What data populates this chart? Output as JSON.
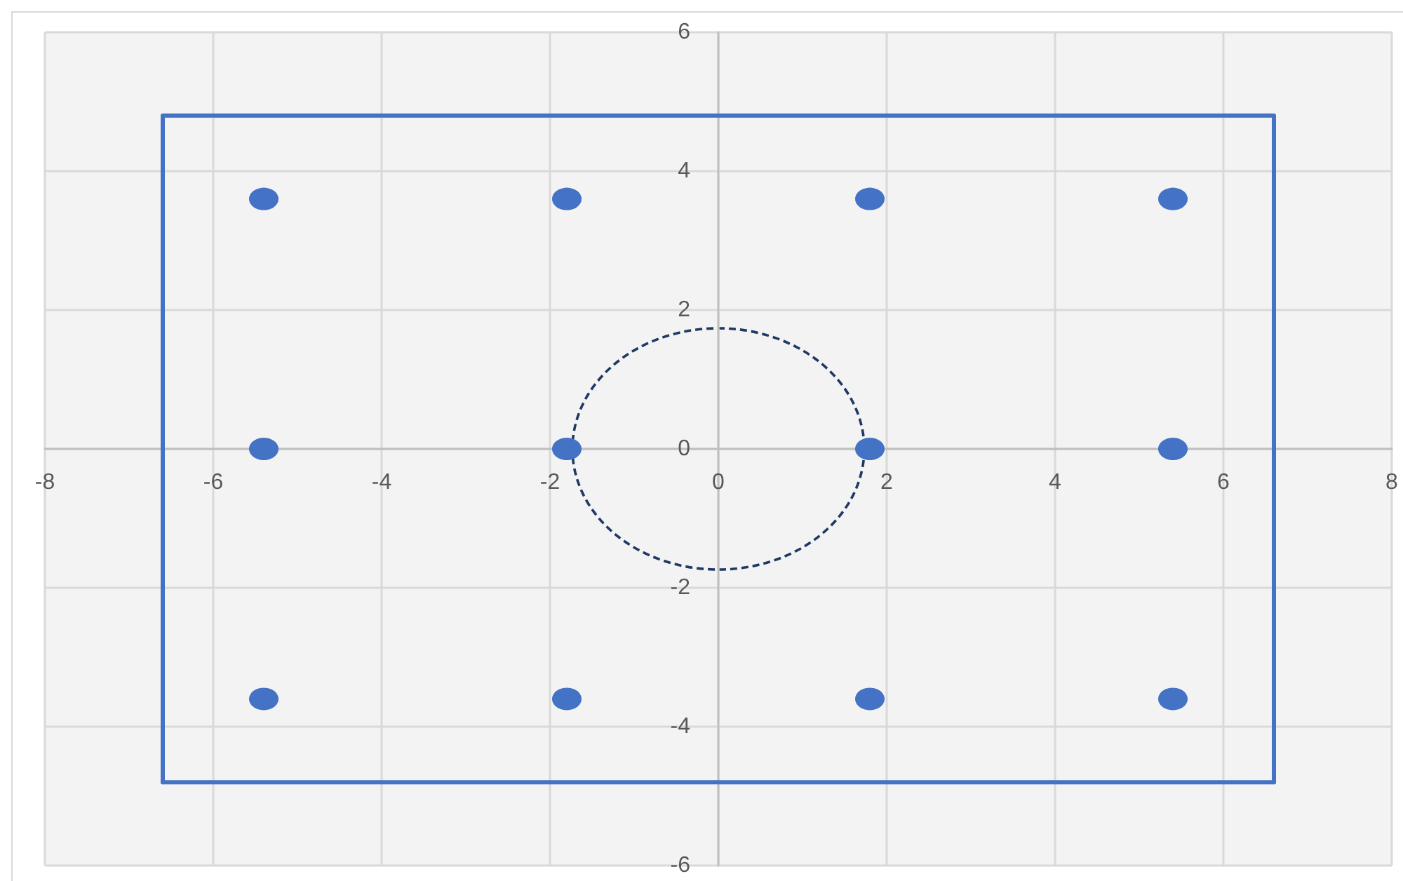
{
  "chart_data": {
    "type": "scatter",
    "xlim": [
      -8,
      8
    ],
    "xticks": [
      -8,
      -6,
      -4,
      -2,
      0,
      2,
      4,
      6,
      8
    ],
    "ylim": [
      -6,
      6
    ],
    "yticks": [
      -6,
      -4,
      -2,
      0,
      2,
      4,
      6
    ],
    "grid": true,
    "marker": "circle",
    "series": [
      {
        "color": "#4472c4",
        "x": [
          -5.4,
          -1.8,
          1.8,
          5.4,
          -5.4,
          -1.8,
          1.8,
          5.4,
          -5.4,
          -1.8,
          1.8,
          5.4
        ],
        "values": [
          3.6,
          3.6,
          3.6,
          3.6,
          0,
          0,
          0,
          0,
          -3.6,
          -3.6,
          -3.6,
          -3.6
        ]
      },
      {
        "type": "line",
        "color": "#4472c4",
        "marker": "none",
        "line_style": "solid",
        "x": [
          -6.6,
          -6.6,
          6.6,
          6.6
        ],
        "values": [
          -4.8,
          4.8,
          4.8,
          -4.8
        ]
      },
      {
        "type": "line",
        "color": "#4472c4",
        "marker": "none",
        "line_style": "solid",
        "x": [
          -6.6,
          6.6
        ],
        "values": [
          -4.8,
          -4.8
        ]
      }
    ]
  }
}
